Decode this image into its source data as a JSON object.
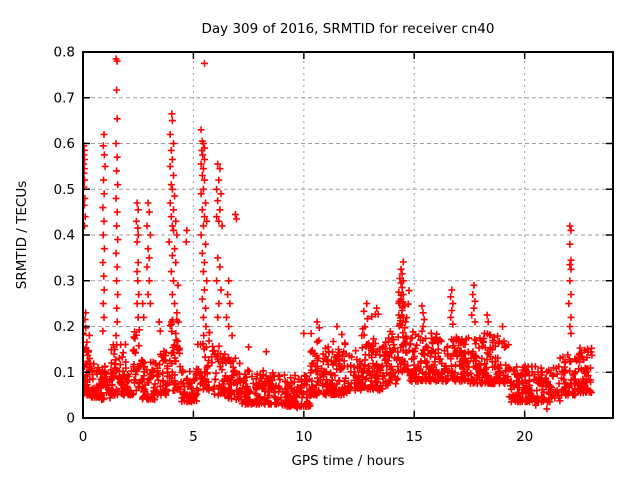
{
  "chart_data": {
    "type": "scatter",
    "title": "Day 309 of 2016, SRMTID for receiver cn40",
    "xlabel": "GPS time / hours",
    "ylabel": "SRMTID / TECUs",
    "xlim": [
      0,
      24
    ],
    "ylim": [
      0,
      0.8
    ],
    "xticks": [
      0,
      5,
      10,
      15,
      20
    ],
    "xtick_labels": [
      "0",
      "5",
      "10",
      "15",
      "20"
    ],
    "yticks": [
      0,
      0.1,
      0.2,
      0.3,
      0.4,
      0.5,
      0.6,
      0.7,
      0.8
    ],
    "ytick_labels": [
      "0",
      "0.1",
      "0.2",
      "0.3",
      "0.4",
      "0.5",
      "0.6",
      "0.7",
      "0.8"
    ],
    "grid": {
      "on": true,
      "color": "#9e9e9e",
      "h_dash": "4,3",
      "v_dash": "2,4"
    },
    "axis_color": "#000000",
    "background": "#ffffff",
    "marker": {
      "shape": "plus",
      "color": "#ff0000",
      "size": 7,
      "stroke": 1.6
    },
    "legend": null,
    "seed": 309,
    "points": [
      [
        0.03,
        0.595
      ],
      [
        0.06,
        0.585
      ],
      [
        0.04,
        0.575
      ],
      [
        0.07,
        0.565
      ],
      [
        0.03,
        0.555
      ],
      [
        0.06,
        0.545
      ],
      [
        0.04,
        0.535
      ],
      [
        0.07,
        0.52
      ],
      [
        0.05,
        0.505
      ],
      [
        0.08,
        0.48
      ],
      [
        0.05,
        0.465
      ],
      [
        0.1,
        0.44
      ],
      [
        0.07,
        0.42
      ],
      [
        0.12,
        0.23
      ],
      [
        0.09,
        0.215
      ],
      [
        0.95,
        0.62
      ],
      [
        0.92,
        0.595
      ],
      [
        0.97,
        0.575
      ],
      [
        1.0,
        0.55
      ],
      [
        0.93,
        0.52
      ],
      [
        0.96,
        0.49
      ],
      [
        0.9,
        0.46
      ],
      [
        0.95,
        0.43
      ],
      [
        0.92,
        0.4
      ],
      [
        0.97,
        0.37
      ],
      [
        0.9,
        0.34
      ],
      [
        0.94,
        0.31
      ],
      [
        0.96,
        0.28
      ],
      [
        0.92,
        0.25
      ],
      [
        0.95,
        0.22
      ],
      [
        0.9,
        0.19
      ],
      [
        1.5,
        0.785
      ],
      [
        1.55,
        0.78
      ],
      [
        1.52,
        0.717
      ],
      [
        1.55,
        0.654
      ],
      [
        1.5,
        0.6
      ],
      [
        1.55,
        0.57
      ],
      [
        1.52,
        0.54
      ],
      [
        1.57,
        0.51
      ],
      [
        1.5,
        0.48
      ],
      [
        1.55,
        0.45
      ],
      [
        1.52,
        0.42
      ],
      [
        1.57,
        0.39
      ],
      [
        1.5,
        0.36
      ],
      [
        1.55,
        0.33
      ],
      [
        1.52,
        0.3
      ],
      [
        1.57,
        0.27
      ],
      [
        1.53,
        0.24
      ],
      [
        1.55,
        0.21
      ],
      [
        1.5,
        0.18
      ],
      [
        2.45,
        0.47
      ],
      [
        2.5,
        0.455
      ],
      [
        2.42,
        0.43
      ],
      [
        2.48,
        0.415
      ],
      [
        2.5,
        0.4
      ],
      [
        2.45,
        0.385
      ],
      [
        2.5,
        0.34
      ],
      [
        2.45,
        0.32
      ],
      [
        2.48,
        0.3
      ],
      [
        2.52,
        0.27
      ],
      [
        2.45,
        0.25
      ],
      [
        2.5,
        0.22
      ],
      [
        2.7,
        0.25
      ],
      [
        2.75,
        0.22
      ],
      [
        2.95,
        0.47
      ],
      [
        3.0,
        0.45
      ],
      [
        2.9,
        0.42
      ],
      [
        3.05,
        0.4
      ],
      [
        2.95,
        0.37
      ],
      [
        3.0,
        0.35
      ],
      [
        2.9,
        0.33
      ],
      [
        3.0,
        0.3
      ],
      [
        2.95,
        0.27
      ],
      [
        3.05,
        0.25
      ],
      [
        3.45,
        0.21
      ],
      [
        3.5,
        0.19
      ],
      [
        4.02,
        0.665
      ],
      [
        4.05,
        0.65
      ],
      [
        3.95,
        0.62
      ],
      [
        4.1,
        0.6
      ],
      [
        4.0,
        0.585
      ],
      [
        4.05,
        0.565
      ],
      [
        3.95,
        0.55
      ],
      [
        4.1,
        0.53
      ],
      [
        4.0,
        0.51
      ],
      [
        4.05,
        0.5
      ],
      [
        4.15,
        0.485
      ],
      [
        3.95,
        0.47
      ],
      [
        4.1,
        0.455
      ],
      [
        4.0,
        0.44
      ],
      [
        4.2,
        0.43
      ],
      [
        4.05,
        0.42
      ],
      [
        4.1,
        0.41
      ],
      [
        4.25,
        0.4
      ],
      [
        3.9,
        0.385
      ],
      [
        4.15,
        0.37
      ],
      [
        4.05,
        0.355
      ],
      [
        4.2,
        0.34
      ],
      [
        4.0,
        0.32
      ],
      [
        4.1,
        0.3
      ],
      [
        4.3,
        0.29
      ],
      [
        4.05,
        0.27
      ],
      [
        4.15,
        0.25
      ],
      [
        4.25,
        0.23
      ],
      [
        4.0,
        0.21
      ],
      [
        4.7,
        0.41
      ],
      [
        4.68,
        0.385
      ],
      [
        5.5,
        0.775
      ],
      [
        5.35,
        0.63
      ],
      [
        5.4,
        0.605
      ],
      [
        5.45,
        0.6
      ],
      [
        5.5,
        0.59
      ],
      [
        5.38,
        0.585
      ],
      [
        5.42,
        0.575
      ],
      [
        5.5,
        0.565
      ],
      [
        5.35,
        0.555
      ],
      [
        5.45,
        0.545
      ],
      [
        5.4,
        0.53
      ],
      [
        5.5,
        0.52
      ],
      [
        5.45,
        0.5
      ],
      [
        5.35,
        0.49
      ],
      [
        5.55,
        0.47
      ],
      [
        5.4,
        0.455
      ],
      [
        5.5,
        0.44
      ],
      [
        5.6,
        0.43
      ],
      [
        5.45,
        0.42
      ],
      [
        5.35,
        0.4
      ],
      [
        5.55,
        0.38
      ],
      [
        5.4,
        0.36
      ],
      [
        5.5,
        0.34
      ],
      [
        5.45,
        0.32
      ],
      [
        5.6,
        0.3
      ],
      [
        5.5,
        0.28
      ],
      [
        5.4,
        0.26
      ],
      [
        5.55,
        0.24
      ],
      [
        5.45,
        0.22
      ],
      [
        6.1,
        0.555
      ],
      [
        6.2,
        0.545
      ],
      [
        6.15,
        0.52
      ],
      [
        6.05,
        0.5
      ],
      [
        6.25,
        0.49
      ],
      [
        6.1,
        0.475
      ],
      [
        6.2,
        0.455
      ],
      [
        6.05,
        0.44
      ],
      [
        6.15,
        0.43
      ],
      [
        6.3,
        0.42
      ],
      [
        6.1,
        0.35
      ],
      [
        6.2,
        0.33
      ],
      [
        6.05,
        0.3
      ],
      [
        6.25,
        0.28
      ],
      [
        6.15,
        0.25
      ],
      [
        6.1,
        0.22
      ],
      [
        6.9,
        0.445
      ],
      [
        6.95,
        0.435
      ],
      [
        6.6,
        0.3
      ],
      [
        6.55,
        0.27
      ],
      [
        6.65,
        0.25
      ],
      [
        6.5,
        0.22
      ],
      [
        6.6,
        0.2
      ],
      [
        6.75,
        0.18
      ],
      [
        7.5,
        0.155
      ],
      [
        8.3,
        0.145
      ],
      [
        10.0,
        0.185
      ],
      [
        10.6,
        0.21
      ],
      [
        11.5,
        0.2
      ],
      [
        12.85,
        0.25
      ],
      [
        13.3,
        0.24
      ],
      [
        14.5,
        0.341
      ],
      [
        14.4,
        0.325
      ],
      [
        14.45,
        0.315
      ],
      [
        14.35,
        0.305
      ],
      [
        14.5,
        0.3
      ],
      [
        14.4,
        0.295
      ],
      [
        14.45,
        0.285
      ],
      [
        14.3,
        0.275
      ],
      [
        14.5,
        0.27
      ],
      [
        14.4,
        0.26
      ],
      [
        14.35,
        0.25
      ],
      [
        14.55,
        0.245
      ],
      [
        14.45,
        0.235
      ],
      [
        14.3,
        0.225
      ],
      [
        14.5,
        0.22
      ],
      [
        14.6,
        0.21
      ],
      [
        15.35,
        0.245
      ],
      [
        15.4,
        0.23
      ],
      [
        15.45,
        0.215
      ],
      [
        15.4,
        0.2
      ],
      [
        16.7,
        0.28
      ],
      [
        16.65,
        0.265
      ],
      [
        16.75,
        0.25
      ],
      [
        16.7,
        0.235
      ],
      [
        16.65,
        0.22
      ],
      [
        16.75,
        0.205
      ],
      [
        17.7,
        0.29
      ],
      [
        17.65,
        0.27
      ],
      [
        17.75,
        0.255
      ],
      [
        17.7,
        0.24
      ],
      [
        17.6,
        0.225
      ],
      [
        17.75,
        0.21
      ],
      [
        18.3,
        0.225
      ],
      [
        18.35,
        0.21
      ],
      [
        19.0,
        0.2
      ],
      [
        22.05,
        0.42
      ],
      [
        22.1,
        0.41
      ],
      [
        22.05,
        0.38
      ],
      [
        22.1,
        0.345
      ],
      [
        22.05,
        0.335
      ],
      [
        22.1,
        0.325
      ],
      [
        22.05,
        0.3
      ],
      [
        22.1,
        0.27
      ],
      [
        22.0,
        0.25
      ],
      [
        22.1,
        0.22
      ],
      [
        22.05,
        0.2
      ],
      [
        22.1,
        0.185
      ],
      [
        21.0,
        0.02
      ],
      [
        20.5,
        0.028
      ],
      [
        9.7,
        0.022
      ],
      [
        9.9,
        0.03
      ]
    ],
    "bands": [
      [
        0.0,
        0.35,
        0.05,
        0.2,
        45
      ],
      [
        0.35,
        0.8,
        0.045,
        0.12,
        35
      ],
      [
        0.8,
        1.25,
        0.04,
        0.115,
        35
      ],
      [
        1.25,
        2.3,
        0.05,
        0.165,
        90
      ],
      [
        2.3,
        2.6,
        0.06,
        0.2,
        25
      ],
      [
        2.6,
        3.3,
        0.04,
        0.13,
        55
      ],
      [
        3.3,
        3.85,
        0.05,
        0.15,
        45
      ],
      [
        3.85,
        4.4,
        0.06,
        0.22,
        40
      ],
      [
        4.4,
        5.2,
        0.035,
        0.11,
        60
      ],
      [
        5.2,
        5.8,
        0.06,
        0.2,
        40
      ],
      [
        5.8,
        6.45,
        0.05,
        0.16,
        45
      ],
      [
        6.45,
        7.2,
        0.04,
        0.14,
        55
      ],
      [
        7.2,
        9.0,
        0.03,
        0.105,
        140
      ],
      [
        9.0,
        10.3,
        0.025,
        0.095,
        100
      ],
      [
        10.3,
        12.0,
        0.05,
        0.145,
        140
      ],
      [
        10.3,
        12.0,
        0.14,
        0.2,
        18
      ],
      [
        12.0,
        13.6,
        0.06,
        0.16,
        120
      ],
      [
        12.6,
        13.5,
        0.16,
        0.235,
        15
      ],
      [
        13.6,
        14.25,
        0.07,
        0.19,
        50
      ],
      [
        14.25,
        14.8,
        0.1,
        0.31,
        50
      ],
      [
        14.8,
        16.3,
        0.08,
        0.19,
        130
      ],
      [
        16.3,
        17.5,
        0.08,
        0.18,
        95
      ],
      [
        17.5,
        19.3,
        0.075,
        0.185,
        140
      ],
      [
        19.3,
        21.6,
        0.035,
        0.115,
        170
      ],
      [
        21.6,
        22.35,
        0.05,
        0.14,
        55
      ],
      [
        22.35,
        23.05,
        0.055,
        0.155,
        60
      ]
    ]
  }
}
